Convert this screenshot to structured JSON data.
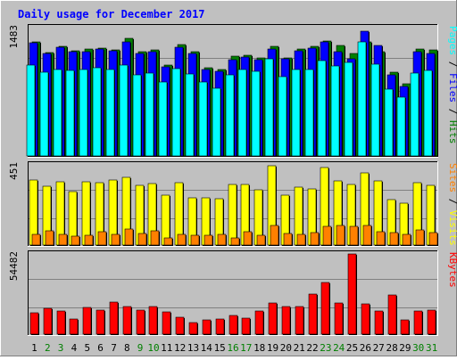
{
  "title": "Daily usage for December 2017",
  "colors": {
    "bg": "#C0C0C0",
    "hits": "#007F00",
    "files": "#0000FF",
    "pages": "#00FFFF",
    "visits": "#FFFF00",
    "sites": "#FF8000",
    "kbytes": "#FF0000",
    "title": "#0000FF",
    "weekend": "#007F00",
    "weekday": "#000000"
  },
  "chart_data": [
    {
      "type": "bar",
      "panel": "pages-files-hits",
      "categories": [
        "1",
        "2",
        "3",
        "4",
        "5",
        "6",
        "7",
        "8",
        "9",
        "10",
        "11",
        "12",
        "13",
        "14",
        "15",
        "16",
        "17",
        "18",
        "19",
        "20",
        "21",
        "22",
        "23",
        "24",
        "25",
        "26",
        "27",
        "28",
        "29",
        "30",
        "31"
      ],
      "ymax_label": "1483",
      "ylim": [
        0,
        1483
      ],
      "legend": [
        {
          "text": "Pages",
          "color": "#00FFFF"
        },
        {
          "text": "Files",
          "color": "#0000FF"
        },
        {
          "text": "Hits",
          "color": "#007F00"
        }
      ],
      "series": [
        {
          "name": "Hits",
          "values": [
            1320,
            1190,
            1270,
            1220,
            1240,
            1250,
            1230,
            1360,
            1200,
            1230,
            1050,
            1290,
            1200,
            1020,
            1000,
            1150,
            1160,
            1130,
            1270,
            1130,
            1240,
            1270,
            1330,
            1280,
            1180,
            1320,
            1200,
            970,
            830,
            1240,
            1230
          ]
        },
        {
          "name": "Files",
          "values": [
            1310,
            1180,
            1260,
            1200,
            1200,
            1240,
            1220,
            1320,
            1180,
            1200,
            1030,
            1260,
            1180,
            1000,
            980,
            1110,
            1140,
            1110,
            1240,
            1120,
            1220,
            1250,
            1320,
            1200,
            1120,
            1440,
            1280,
            940,
            800,
            1210,
            1180
          ]
        },
        {
          "name": "Pages",
          "values": [
            1050,
            970,
            1000,
            990,
            1000,
            1020,
            1000,
            1050,
            940,
            960,
            850,
            1010,
            950,
            850,
            780,
            940,
            1000,
            980,
            1120,
            920,
            1000,
            1000,
            1100,
            1040,
            1080,
            1320,
            1060,
            770,
            680,
            960,
            990
          ]
        }
      ]
    },
    {
      "type": "bar",
      "panel": "sites-visits",
      "categories": [
        "1",
        "2",
        "3",
        "4",
        "5",
        "6",
        "7",
        "8",
        "9",
        "10",
        "11",
        "12",
        "13",
        "14",
        "15",
        "16",
        "17",
        "18",
        "19",
        "20",
        "21",
        "22",
        "23",
        "24",
        "25",
        "26",
        "27",
        "28",
        "29",
        "30",
        "31"
      ],
      "ymax_label": "451",
      "ylim": [
        0,
        451
      ],
      "legend": [
        {
          "text": "Sites",
          "color": "#FF8000"
        },
        {
          "text": "Visits",
          "color": "#FFFF00"
        }
      ],
      "series": [
        {
          "name": "Visits",
          "values": [
            365,
            330,
            355,
            300,
            355,
            350,
            365,
            380,
            335,
            345,
            280,
            350,
            265,
            265,
            260,
            340,
            340,
            310,
            445,
            280,
            325,
            315,
            435,
            360,
            340,
            405,
            360,
            255,
            235,
            350,
            335
          ]
        },
        {
          "name": "Sites",
          "values": [
            60,
            80,
            60,
            50,
            55,
            75,
            60,
            90,
            65,
            80,
            40,
            60,
            55,
            55,
            60,
            40,
            75,
            55,
            110,
            65,
            60,
            70,
            105,
            110,
            105,
            110,
            75,
            70,
            60,
            85,
            70
          ]
        }
      ]
    },
    {
      "type": "bar",
      "panel": "kbytes",
      "categories": [
        "1",
        "2",
        "3",
        "4",
        "5",
        "6",
        "7",
        "8",
        "9",
        "10",
        "11",
        "12",
        "13",
        "14",
        "15",
        "16",
        "17",
        "18",
        "19",
        "20",
        "21",
        "22",
        "23",
        "24",
        "25",
        "26",
        "27",
        "28",
        "29",
        "30",
        "31"
      ],
      "ymax_label": "54482",
      "ylim": [
        0,
        54482
      ],
      "legend": [
        {
          "text": "KBytes",
          "color": "#FF0000"
        }
      ],
      "series": [
        {
          "name": "KBytes",
          "values": [
            14500,
            17500,
            16000,
            10500,
            18000,
            16500,
            22000,
            19000,
            16500,
            19000,
            15000,
            11500,
            8000,
            9500,
            10000,
            12500,
            11000,
            15500,
            21000,
            18500,
            18500,
            27000,
            35000,
            21000,
            54482,
            20500,
            16000,
            26500,
            9500,
            16000,
            16500
          ]
        }
      ]
    }
  ]
}
